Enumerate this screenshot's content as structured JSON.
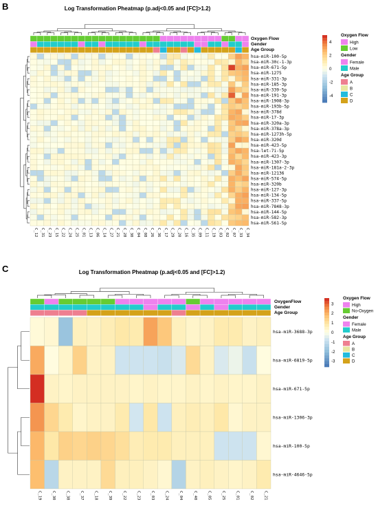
{
  "colors": {
    "high": "#ee82ee",
    "low": "#66cc33",
    "female": "#ee82ee",
    "male": "#22cccc",
    "age_a": "#ee7f90",
    "age_b": "#e8e6a0",
    "age_c": "#22bbdd",
    "age_d": "#d4a21a",
    "cell_border": "#c8c8a8",
    "dendro": "#333333"
  },
  "chart_data": [
    {
      "type": "heatmap",
      "panel": "B",
      "title": "Log Transformation Pheatmap (p.adj<0.05 and [FC]>1.2)",
      "columns": [
        "C_12",
        "C_31",
        "C_23",
        "C_15",
        "C_22",
        "C_24",
        "C_25",
        "C_01",
        "C_13",
        "C_06",
        "C_14",
        "C_27",
        "C_21",
        "C_28",
        "C_30",
        "C_04",
        "C_08",
        "C_26",
        "C_36",
        "C_17",
        "C_29",
        "C_20",
        "C_16",
        "C_35",
        "C_09",
        "C_11",
        "C_19",
        "C_03",
        "C_02",
        "C_07",
        "C_33",
        "C_34"
      ],
      "rows": [
        "hsa-miR-100-5p",
        "hsa-miR-30c-1-3p",
        "hsa-miR-671-5p",
        "hsa-miR-1275",
        "hsa-miR-331-3p",
        "hsa-miR-185-3p",
        "hsa-miR-339-5p",
        "hsa-miR-191-3p",
        "hsa-miR-1908-3p",
        "hsa-miR-193b-5p",
        "hsa-miR-378d",
        "hsa-miR-17-3p",
        "hsa-miR-320a-3p",
        "hsa-miR-378a-3p",
        "hsa-miR-1273h-5p",
        "hsa-miR-320d",
        "hsa-miR-423-5p",
        "hsa-let-7i-5p",
        "hsa-miR-423-3p",
        "hsa-miR-1307-3p",
        "hsa-miR-181a-2-3p",
        "hsa-miR-12136",
        "hsa-miR-574-5p",
        "hsa-miR-320b",
        "hsa-miR-127-3p",
        "hsa-miR-134-5p",
        "hsa-miR-337-5p",
        "hsa-miR-7848-3p",
        "hsa-miR-144-5p",
        "hsa-miR-582-3p",
        "hsa-miR-561-5p"
      ],
      "annotation_labels": [
        "Oxygen Flow",
        "Gender",
        "Age Group"
      ],
      "annotations": {
        "oxygen": "LLLLLLLLLLLLLLLLLLLHHHHHHHHHLLHH",
        "gender": "FMMMMMMFMMFMMMMMFMMMMMMMFFMMFMMF",
        "age": "DDDDDDDDDDDDDDDDDDACDDADCDDDDDCD"
      },
      "legend": {
        "scale_ticks": [
          4,
          2,
          0,
          -2,
          -4
        ],
        "scale_range": [
          -5,
          5
        ],
        "groups": [
          {
            "title": "Oxygen Flow",
            "items": [
              {
                "label": "High",
                "color": "#ee82ee"
              },
              {
                "label": "Low",
                "color": "#66cc33"
              }
            ]
          },
          {
            "title": "Gender",
            "items": [
              {
                "label": "Female",
                "color": "#ee82ee"
              },
              {
                "label": "Male",
                "color": "#22cccc"
              }
            ]
          },
          {
            "title": "Age Group",
            "items": [
              {
                "label": "A",
                "color": "#ee7f90"
              },
              {
                "label": "B",
                "color": "#e8e6a0"
              },
              {
                "label": "C",
                "color": "#22bbdd"
              },
              {
                "label": "D",
                "color": "#d4a21a"
              }
            ]
          }
        ]
      }
    },
    {
      "type": "heatmap",
      "panel": "C",
      "title": "Log Transformation Pheatmap (p.adj<0.05 and [FC]>1.2)",
      "columns": [
        "C_19",
        "C_30",
        "C_38",
        "C_37",
        "C_18",
        "C_39",
        "C_22",
        "C_23",
        "C_03",
        "C_24",
        "C_04",
        "C_40",
        "C_05",
        "C_25",
        "C_01",
        "C_02",
        "C_21"
      ],
      "rows": [
        "hsa-miR-3688-3p",
        "hsa-miR-6819-5p",
        "hsa-miR-671-5p",
        "hsa-miR-1306-3p",
        "hsa-miR-100-5p",
        "hsa-miR-4646-5p"
      ],
      "annotation_labels": [
        "OxygenFlow",
        "Gender",
        "Age Group"
      ],
      "annotations": {
        "oxygen": "NHNNNNHHHHHNHHHHH",
        "gender": "MMMMMMMMFMMFMFMMM",
        "age": "AAAADDDDDDADDDDDD"
      },
      "values": [
        [
          0.2,
          0.3,
          -1.8,
          0.6,
          0.5,
          0.7,
          0.9,
          0.8,
          2.2,
          1.6,
          0.6,
          0.4,
          0.5,
          0.8,
          0.8,
          0.5,
          0.6
        ],
        [
          2.1,
          0.1,
          0.4,
          1.4,
          0.5,
          0.5,
          -0.8,
          -0.8,
          -0.8,
          -0.9,
          -0.6,
          1.2,
          0.5,
          -0.6,
          -0.3,
          -0.9,
          0.1
        ],
        [
          3.5,
          0.5,
          0.4,
          0.5,
          0.5,
          0.5,
          0.5,
          0.4,
          0.5,
          0.4,
          0.4,
          0.5,
          0.4,
          0.5,
          0.4,
          0.4,
          0.5
        ],
        [
          2.4,
          1.3,
          0.8,
          0.4,
          0.5,
          0.5,
          0.8,
          -0.7,
          0.9,
          -0.8,
          0.6,
          0.7,
          0.6,
          0.9,
          0.3,
          0.5,
          0.5
        ],
        [
          1.9,
          0.9,
          1.4,
          1.3,
          1.4,
          1.3,
          1.1,
          0.7,
          0.8,
          0.8,
          0.6,
          0.6,
          0.6,
          -0.8,
          -0.8,
          -0.8,
          0.3
        ],
        [
          1.8,
          -1.2,
          0.5,
          0.5,
          0.5,
          1.2,
          0.6,
          0.6,
          0.5,
          0.3,
          -1.3,
          0.5,
          0.6,
          0.5,
          0.4,
          0.5,
          0.8
        ]
      ],
      "legend": {
        "scale_ticks": [
          3,
          2,
          1,
          0,
          -1,
          -2,
          -3
        ],
        "scale_range": [
          -3.6,
          3.6
        ],
        "groups": [
          {
            "title": "Oxygen Flow",
            "items": [
              {
                "label": "High",
                "color": "#ee82ee"
              },
              {
                "label": "No-Oxygen",
                "color": "#66cc33"
              }
            ]
          },
          {
            "title": "Gender",
            "items": [
              {
                "label": "Female",
                "color": "#ee82ee"
              },
              {
                "label": "Male",
                "color": "#22cccc"
              }
            ]
          },
          {
            "title": "Age Group",
            "items": [
              {
                "label": "A",
                "color": "#ee7f90"
              },
              {
                "label": "B",
                "color": "#e8e6a0"
              },
              {
                "label": "C",
                "color": "#22bbdd"
              },
              {
                "label": "D",
                "color": "#d4a21a"
              }
            ]
          }
        ]
      }
    }
  ]
}
